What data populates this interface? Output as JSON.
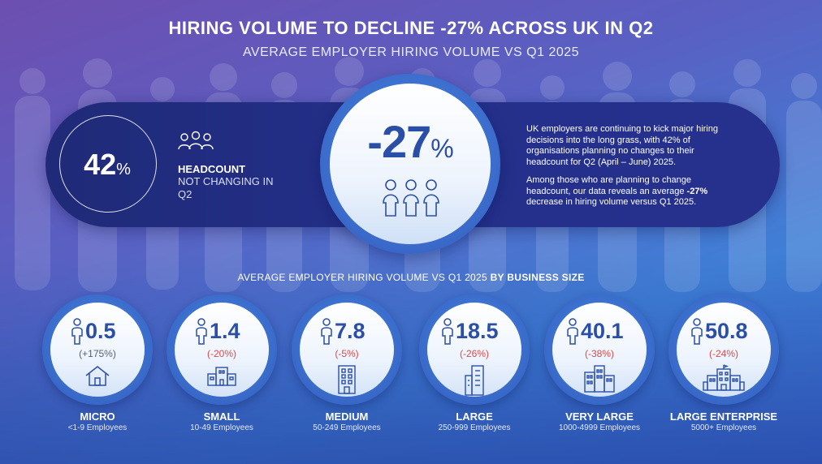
{
  "title": "HIRING VOLUME TO DECLINE -27% ACROSS UK IN Q2",
  "subtitle": "AVERAGE EMPLOYER HIRING VOLUME VS Q1 2025",
  "headcount": {
    "value": "42",
    "pct": "%",
    "label": "HEADCOUNT",
    "sub": "NOT CHANGING IN Q2",
    "icon": "people-group-icon"
  },
  "headline": {
    "value": "-27",
    "pct": "%",
    "icon": "three-people-icon"
  },
  "description": {
    "p1": "UK employers are continuing to kick major hiring decisions into the long grass, with 42% of organisations planning no changes to their headcount for Q2 (April – June) 2025.",
    "p2_before": "Among those who are planning to change headcount, our data reveals an average ",
    "p2_bold": "-27%",
    "p2_after": " decrease in hiring volume versus Q1 2025."
  },
  "section": {
    "heading": "AVERAGE EMPLOYER HIRING VOLUME VS Q1 2025 ",
    "heading_bold": "BY BUSINESS SIZE"
  },
  "sizes": [
    {
      "value": "0.5",
      "change": "(+175%)",
      "name": "MICRO",
      "employees": "<1-9 Employees",
      "icon": "house-icon"
    },
    {
      "value": "1.4",
      "change": "(-20%)",
      "name": "SMALL",
      "employees": "10-49 Employees",
      "icon": "small-building-icon"
    },
    {
      "value": "7.8",
      "change": "(-5%)",
      "name": "MEDIUM",
      "employees": "50-249 Employees",
      "icon": "tall-building-icon"
    },
    {
      "value": "18.5",
      "change": "(-26%)",
      "name": "LARGE",
      "employees": "250-999 Employees",
      "icon": "office-tower-icon"
    },
    {
      "value": "40.1",
      "change": "(-38%)",
      "name": "VERY LARGE",
      "employees": "1000-4999 Employees",
      "icon": "city-buildings-icon"
    },
    {
      "value": "50.8",
      "change": "(-24%)",
      "name": "LARGE ENTERPRISE",
      "employees": "5000+ Employees",
      "icon": "enterprise-campus-icon"
    }
  ],
  "colors": {
    "accent_blue": "#2b4fa6",
    "negative": "#d94a4a",
    "band": "#24308a"
  }
}
